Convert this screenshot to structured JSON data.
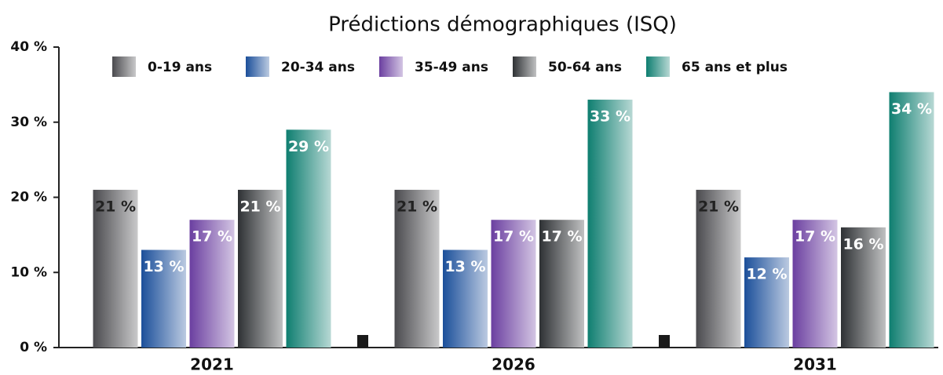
{
  "chart_data": {
    "type": "bar",
    "title": "Prédictions démographiques (ISQ)",
    "categories": [
      "2021",
      "2026",
      "2031"
    ],
    "series": [
      {
        "name": "0-19 ans",
        "color": "#4a4a4e",
        "values": [
          21,
          21,
          21
        ],
        "value_labels": [
          "21 %",
          "21 %",
          "21 %"
        ]
      },
      {
        "name": "20-34 ans",
        "color": "#1b4f9a",
        "values": [
          13,
          13,
          12
        ],
        "value_labels": [
          "13 %",
          "13 %",
          "12 %"
        ]
      },
      {
        "name": "35-49 ans",
        "color": "#6b3fa0",
        "values": [
          17,
          17,
          17
        ],
        "value_labels": [
          "17 %",
          "17 %",
          "17 %"
        ]
      },
      {
        "name": "50-64 ans",
        "color": "#2e3134",
        "values": [
          21,
          17,
          16
        ],
        "value_labels": [
          "21 %",
          "17 %",
          "16 %"
        ]
      },
      {
        "name": "65 ans et plus",
        "color": "#0e7e70",
        "values": [
          29,
          33,
          34
        ],
        "value_labels": [
          "29 %",
          "33 %",
          "34 %"
        ]
      }
    ],
    "ylim": [
      0,
      40
    ],
    "yticks": [
      {
        "value": 0,
        "label": "0 %"
      },
      {
        "value": 10,
        "label": "10 %"
      },
      {
        "value": 20,
        "label": "20 %"
      },
      {
        "value": 30,
        "label": "30 %"
      },
      {
        "value": 40,
        "label": "40 %"
      }
    ],
    "grid": false
  }
}
